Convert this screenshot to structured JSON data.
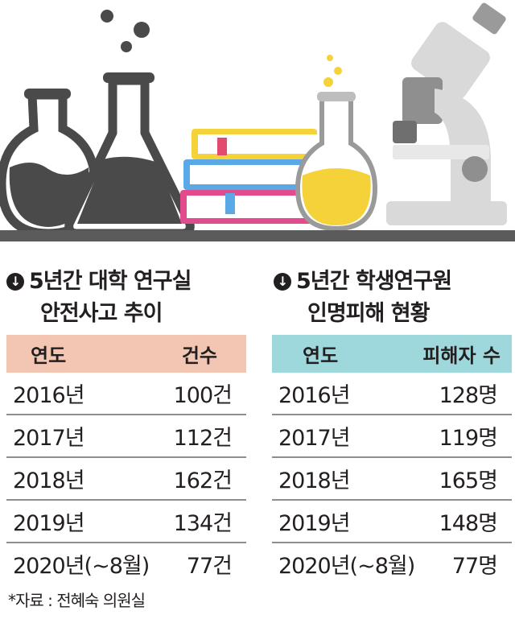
{
  "left_section": {
    "title_line1": "5년간 대학 연구실",
    "title_line2": "안전사고 추이",
    "headers": [
      "연도",
      "건수"
    ],
    "rows": [
      [
        "2016년",
        "100건"
      ],
      [
        "2017년",
        "112건"
      ],
      [
        "2018년",
        "162건"
      ],
      [
        "2019년",
        "134건"
      ],
      [
        "2020년(~8월)",
        "77건"
      ]
    ],
    "header_color": "#f3c6b4"
  },
  "right_section": {
    "title_line1": "5년간 학생연구원",
    "title_line2": "인명피해 현황",
    "headers": [
      "연도",
      "피해자 수"
    ],
    "rows": [
      [
        "2016년",
        "128명"
      ],
      [
        "2017년",
        "119명"
      ],
      [
        "2018년",
        "165명"
      ],
      [
        "2019년",
        "148명"
      ],
      [
        "2020년(~8월)",
        "77명"
      ]
    ],
    "header_color": "#9fd8dc"
  },
  "source": "*자료 : 전혜숙 의원실",
  "icons": [
    "round-flask-icon",
    "erlenmeyer-flask-icon",
    "books-icon",
    "yellow-flask-icon",
    "microscope-icon",
    "down-arrow-bullet-icon"
  ]
}
